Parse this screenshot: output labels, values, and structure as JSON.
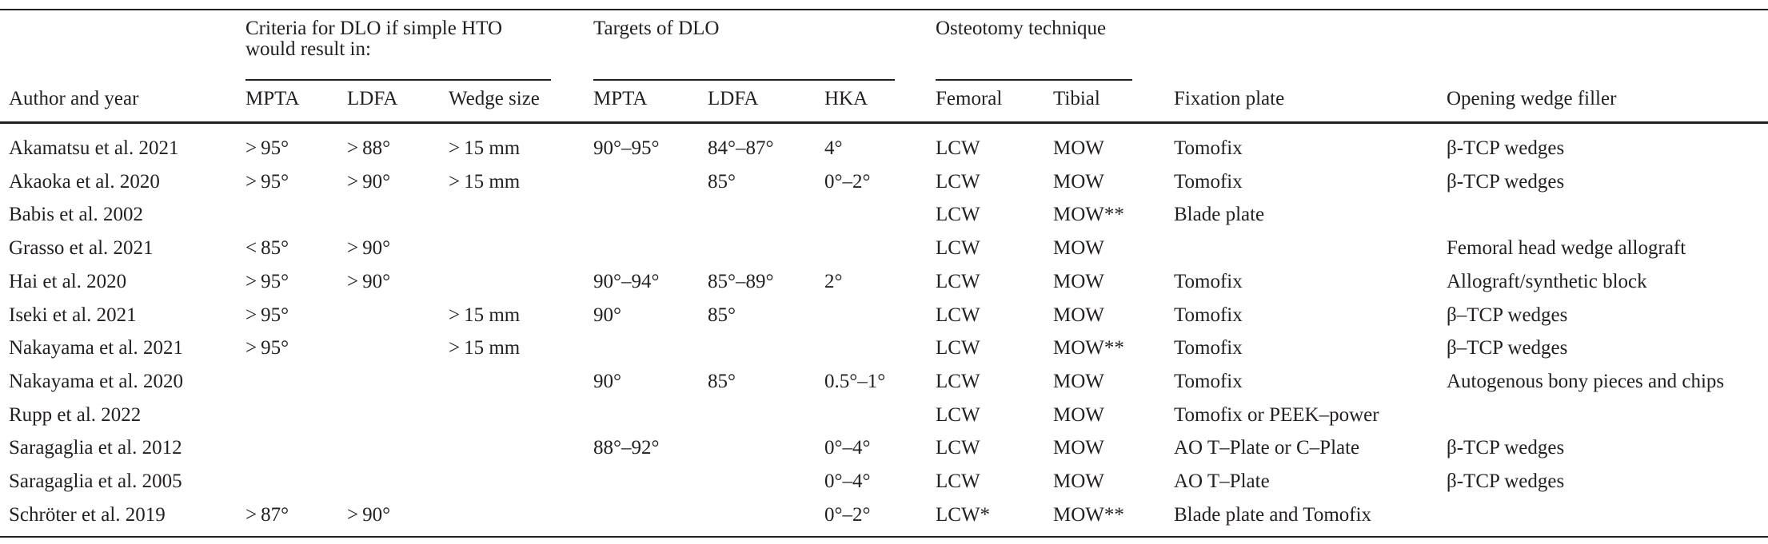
{
  "table": {
    "groups": [
      {
        "label": "Criteria for DLO if simple HTO would result in:"
      },
      {
        "label": "Targets of DLO"
      },
      {
        "label": "Osteotomy technique"
      }
    ],
    "columns": [
      "Author and year",
      "MPTA",
      "LDFA",
      "Wedge size",
      "MPTA",
      "LDFA",
      "HKA",
      "Femoral",
      "Tibial",
      "Fixation plate",
      "Opening wedge filler"
    ],
    "rows": [
      [
        "Akamatsu et al. 2021",
        "> 95°",
        "> 88°",
        "> 15 mm",
        "90°–95°",
        "84°–87°",
        "4°",
        "LCW",
        "MOW",
        "Tomofix",
        "β-TCP wedges"
      ],
      [
        "Akaoka et al. 2020",
        "> 95°",
        "> 90°",
        "> 15 mm",
        null,
        "85°",
        "0°–2°",
        "LCW",
        "MOW",
        "Tomofix",
        "β-TCP wedges"
      ],
      [
        "Babis et al. 2002",
        null,
        null,
        null,
        null,
        null,
        null,
        "LCW",
        "MOW**",
        "Blade plate",
        null
      ],
      [
        "Grasso et al. 2021",
        "< 85°",
        "> 90°",
        null,
        null,
        null,
        null,
        "LCW",
        "MOW",
        null,
        "Femoral head wedge allograft"
      ],
      [
        "Hai et al. 2020",
        "> 95°",
        "> 90°",
        null,
        "90°–94°",
        "85°–89°",
        "2°",
        "LCW",
        "MOW",
        "Tomofix",
        "Allograft/synthetic block"
      ],
      [
        "Iseki et al. 2021",
        "> 95°",
        null,
        "> 15 mm",
        "90°",
        "85°",
        null,
        "LCW",
        "MOW",
        "Tomofix",
        "β–TCP wedges"
      ],
      [
        "Nakayama et al. 2021",
        "> 95°",
        null,
        "> 15 mm",
        null,
        null,
        null,
        "LCW",
        "MOW**",
        "Tomofix",
        "β–TCP wedges"
      ],
      [
        "Nakayama et al. 2020",
        null,
        null,
        null,
        "90°",
        "85°",
        "0.5°–1°",
        "LCW",
        "MOW",
        "Tomofix",
        "Autogenous bony pieces and chips"
      ],
      [
        "Rupp et al. 2022",
        null,
        null,
        null,
        null,
        null,
        null,
        "LCW",
        "MOW",
        "Tomofix or PEEK–power",
        null
      ],
      [
        "Saragaglia et al. 2012",
        null,
        null,
        null,
        "88°–92°",
        null,
        "0°–4°",
        "LCW",
        "MOW",
        "AO T–Plate or C–Plate",
        "β-TCP wedges"
      ],
      [
        "Saragaglia et al. 2005",
        null,
        null,
        null,
        null,
        null,
        "0°–4°",
        "LCW",
        "MOW",
        "AO T–Plate",
        "β-TCP wedges"
      ],
      [
        "Schröter et al. 2019",
        "> 87°",
        "> 90°",
        null,
        null,
        null,
        "0°–2°",
        "LCW*",
        "MOW**",
        "Blade plate and Tomofix",
        null
      ]
    ]
  }
}
